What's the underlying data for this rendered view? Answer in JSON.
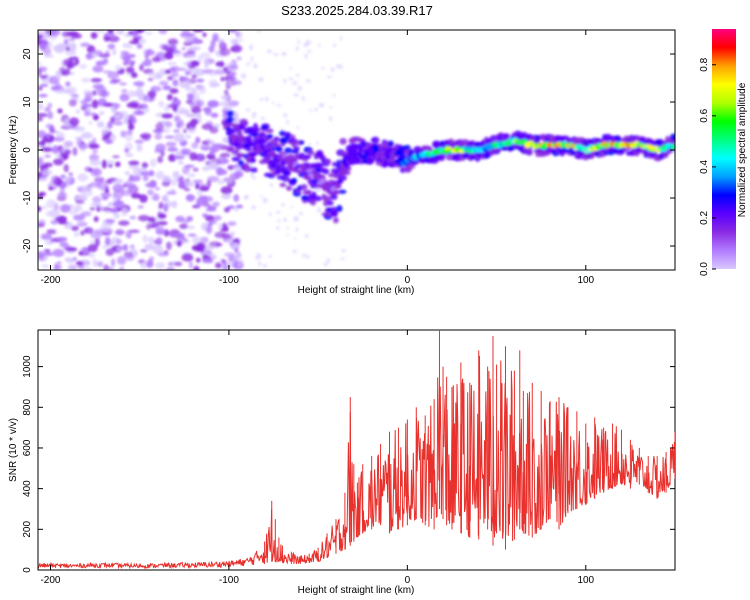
{
  "title": "S233.2025.284.03.39.R17",
  "colors": {
    "snr_line": "#e8302c",
    "axis": "#000000",
    "spectrogram_scale": [
      "#ffffff",
      "#d9c8ff",
      "#b27cff",
      "#8a2be2",
      "#5a00ff",
      "#0000ff",
      "#00a0ff",
      "#00ffff",
      "#00ff80",
      "#00ff00",
      "#b0ff00",
      "#ffff00",
      "#ffa000",
      "#ff0000",
      "#ff0080"
    ]
  },
  "chart_data": [
    {
      "type": "heatmap",
      "title": "S233.2025.284.03.39.R17",
      "xlabel": "Height of straight line (km)",
      "ylabel": "Frequency (Hz)",
      "xlim": [
        -207,
        150
      ],
      "ylim": [
        -25,
        25
      ],
      "xticks": [
        -200,
        -100,
        0,
        100
      ],
      "xtick_labels": [
        "-200",
        "-100",
        "0",
        "100"
      ],
      "yticks": [
        -20,
        -10,
        0,
        10,
        20
      ],
      "ytick_labels": [
        "-20",
        "-10",
        "0",
        "10",
        "20"
      ],
      "colorbar": {
        "label": "Normalized spectral amplitude",
        "range": [
          0,
          0.94
        ],
        "ticks": [
          0,
          0.2,
          0.4,
          0.6,
          0.8
        ],
        "tick_labels": [
          "0.0",
          "0.2",
          "0.4",
          "0.6",
          "0.8"
        ]
      },
      "ridge": {
        "description_regions": [
          {
            "x_range": [
              -207,
              -100
            ],
            "freq_spread": 25,
            "amplitude": 0.1
          },
          {
            "x_range": [
              -100,
              -70
            ],
            "freq_center": 0,
            "freq_spread": 5,
            "amplitude": 0.25
          },
          {
            "x_range": [
              -70,
              -35
            ],
            "freq_center": -6,
            "freq_spread": 6,
            "amplitude": 0.2
          },
          {
            "x_range": [
              -35,
              0
            ],
            "freq_center": -1,
            "freq_spread": 2,
            "amplitude": 0.35
          },
          {
            "x_range": [
              0,
              150
            ],
            "freq_center": 0,
            "freq_spread": 1.5,
            "amplitude": 0.8
          }
        ],
        "center_x": [
          -100,
          -90,
          -80,
          -70,
          -60,
          -50,
          -45,
          -40,
          -35,
          -30,
          -20,
          -10,
          0,
          10,
          20,
          30,
          40,
          50,
          60,
          70,
          80,
          90,
          100,
          110,
          120,
          130,
          140,
          150
        ],
        "center_freq": [
          3,
          1,
          0,
          -2,
          -4,
          -6,
          -8,
          -9,
          -3,
          0,
          0,
          -1,
          -2,
          -1,
          0,
          0,
          0,
          1,
          2,
          1,
          1,
          1,
          0,
          1,
          1,
          1,
          0,
          1
        ],
        "amplitude": [
          0.25,
          0.3,
          0.3,
          0.25,
          0.25,
          0.2,
          0.2,
          0.2,
          0.3,
          0.35,
          0.35,
          0.3,
          0.4,
          0.55,
          0.75,
          0.7,
          0.55,
          0.6,
          0.7,
          0.75,
          0.85,
          0.85,
          0.7,
          0.8,
          0.9,
          0.85,
          0.75,
          0.6
        ]
      }
    },
    {
      "type": "line",
      "xlabel": "Height of straight line (km)",
      "ylabel": "SNR (10 * v/v)",
      "xlim": [
        -207,
        150
      ],
      "ylim": [
        0,
        1180
      ],
      "xticks": [
        -200,
        -100,
        0,
        100
      ],
      "xtick_labels": [
        "-200",
        "-100",
        "0",
        "100"
      ],
      "yticks": [
        0,
        200,
        400,
        600,
        800,
        1000
      ],
      "ytick_labels": [
        "0",
        "200",
        "400",
        "600",
        "800",
        "1000"
      ],
      "series": [
        {
          "name": "SNR",
          "x": [
            -207,
            -190,
            -170,
            -150,
            -130,
            -110,
            -100,
            -90,
            -85,
            -80,
            -76,
            -74,
            -72,
            -70,
            -65,
            -60,
            -55,
            -50,
            -45,
            -40,
            -35,
            -32,
            -30,
            -28,
            -25,
            -20,
            -15,
            -10,
            -5,
            0,
            5,
            10,
            15,
            18,
            20,
            22,
            25,
            30,
            35,
            40,
            45,
            48,
            50,
            55,
            60,
            63,
            65,
            70,
            75,
            80,
            85,
            90,
            95,
            100,
            105,
            110,
            115,
            120,
            125,
            130,
            135,
            140,
            145,
            150
          ],
          "envelope_max": [
            35,
            30,
            35,
            30,
            35,
            40,
            45,
            60,
            90,
            140,
            340,
            250,
            160,
            120,
            90,
            70,
            80,
            110,
            180,
            250,
            380,
            850,
            520,
            430,
            520,
            560,
            620,
            680,
            700,
            740,
            800,
            760,
            840,
            1180,
            1000,
            950,
            900,
            1020,
            920,
            1080,
            1000,
            1150,
            1010,
            1100,
            980,
            1080,
            880,
            920,
            880,
            830,
            850,
            800,
            780,
            720,
            750,
            700,
            720,
            690,
            640,
            600,
            560,
            560,
            580,
            680
          ],
          "envelope_min": [
            10,
            10,
            12,
            10,
            12,
            12,
            15,
            20,
            25,
            30,
            40,
            40,
            40,
            35,
            30,
            30,
            35,
            40,
            60,
            80,
            100,
            120,
            140,
            160,
            180,
            200,
            220,
            180,
            200,
            220,
            250,
            220,
            200,
            300,
            250,
            220,
            200,
            180,
            160,
            150,
            200,
            120,
            180,
            100,
            150,
            200,
            180,
            160,
            200,
            250,
            200,
            280,
            300,
            320,
            350,
            380,
            400,
            420,
            400,
            420,
            380,
            350,
            380,
            450
          ]
        }
      ]
    }
  ]
}
